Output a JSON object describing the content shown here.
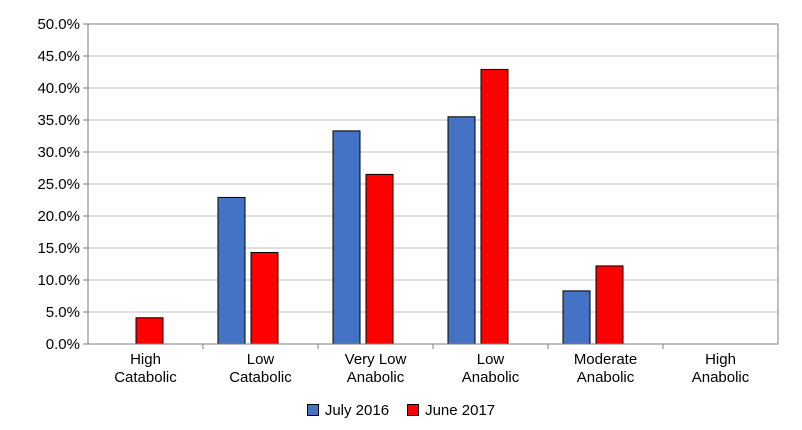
{
  "chart_data": {
    "type": "bar",
    "categories": [
      [
        "High",
        "Catabolic"
      ],
      [
        "Low",
        "Catabolic"
      ],
      [
        "Very Low",
        "Anabolic"
      ],
      [
        "Low",
        "Anabolic"
      ],
      [
        "Moderate",
        "Anabolic"
      ],
      [
        "High",
        "Anabolic"
      ]
    ],
    "series": [
      {
        "name": "July 2016",
        "color": "#4472C4",
        "values": [
          0,
          22.9,
          33.3,
          35.5,
          8.3,
          0
        ]
      },
      {
        "name": "June 2017",
        "color": "#FF0000",
        "values": [
          4.1,
          14.3,
          26.5,
          42.9,
          12.2,
          0
        ]
      }
    ],
    "y_ticks": [
      "0.0%",
      "5.0%",
      "10.0%",
      "15.0%",
      "20.0%",
      "25.0%",
      "30.0%",
      "35.0%",
      "40.0%",
      "45.0%",
      "50.0%"
    ],
    "ylim": [
      0,
      50
    ],
    "grid": true,
    "legend_position": "bottom"
  }
}
